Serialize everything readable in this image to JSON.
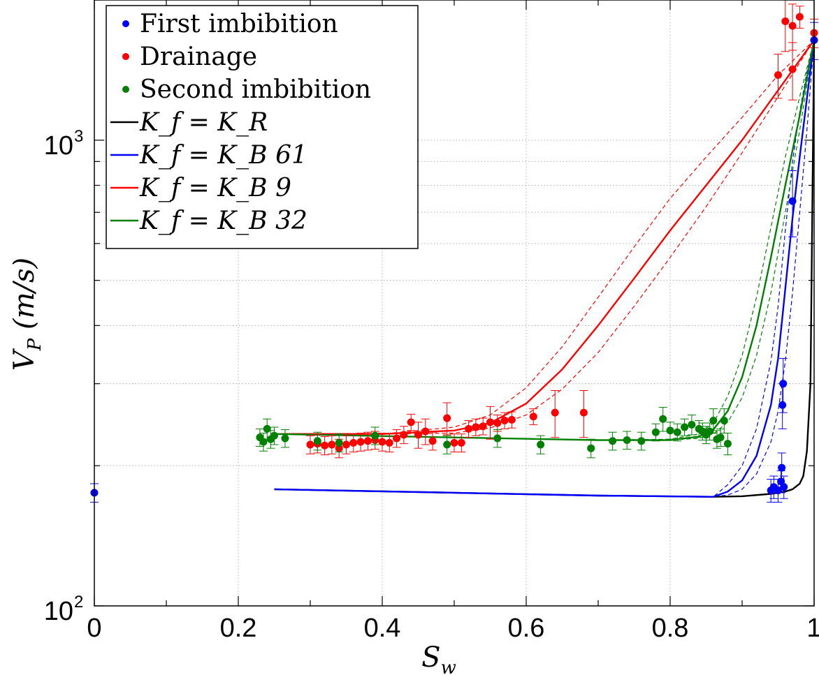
{
  "chart_data": {
    "type": "scatter",
    "xlabel": "S_w",
    "ylabel": "V_P (m/s)",
    "xlim": [
      0,
      1
    ],
    "ylim": [
      100,
      2000
    ],
    "yscale": "log",
    "grid": true,
    "legend_position": "top-left",
    "x_ticks": [
      "0",
      "0.2",
      "0.4",
      "0.6",
      "0.8",
      "1"
    ],
    "y_ticks": [
      "10^2",
      "10^3"
    ],
    "series": [
      {
        "name": "First imbibition",
        "kind": "points",
        "color": "#0000ff",
        "x": [
          0.0,
          0.94,
          0.944,
          0.95,
          0.954,
          0.955,
          0.956,
          0.957,
          0.958,
          0.97,
          1.0
        ],
        "y": [
          175,
          177,
          180,
          177,
          185,
          198,
          270,
          300,
          180,
          740,
          1640
        ],
        "err": [
          8,
          10,
          10,
          10,
          10,
          15,
          30,
          40,
          10,
          120,
          150
        ]
      },
      {
        "name": "Drainage",
        "kind": "points",
        "color": "#ff0000",
        "x": [
          0.3,
          0.31,
          0.32,
          0.33,
          0.34,
          0.35,
          0.36,
          0.37,
          0.38,
          0.39,
          0.4,
          0.41,
          0.42,
          0.43,
          0.44,
          0.45,
          0.46,
          0.47,
          0.49,
          0.5,
          0.51,
          0.52,
          0.53,
          0.54,
          0.55,
          0.56,
          0.57,
          0.58,
          0.61,
          0.64,
          0.68,
          0.95,
          0.96,
          0.97,
          0.97,
          0.98,
          1.0
        ],
        "y": [
          222,
          223,
          221,
          222,
          218,
          222,
          224,
          225,
          226,
          227,
          225,
          224,
          229,
          233,
          248,
          233,
          237,
          226,
          253,
          224,
          224,
          240,
          242,
          243,
          248,
          247,
          250,
          251,
          255,
          260,
          260,
          1380,
          1800,
          1760,
          1420,
          1840,
          1700
        ],
        "err": [
          10,
          10,
          10,
          10,
          10,
          10,
          10,
          10,
          10,
          10,
          10,
          10,
          10,
          10,
          10,
          15,
          15,
          10,
          20,
          10,
          10,
          10,
          10,
          10,
          20,
          10,
          10,
          10,
          10,
          30,
          30,
          150,
          250,
          200,
          200,
          100,
          120
        ]
      },
      {
        "name": "Second imbibition",
        "kind": "points",
        "color": "#008000",
        "x": [
          0.23,
          0.235,
          0.24,
          0.245,
          0.25,
          0.265,
          0.31,
          0.34,
          0.39,
          0.49,
          0.56,
          0.62,
          0.69,
          0.72,
          0.74,
          0.76,
          0.78,
          0.79,
          0.8,
          0.81,
          0.82,
          0.83,
          0.84,
          0.845,
          0.85,
          0.855,
          0.86,
          0.865,
          0.87,
          0.875,
          0.88
        ],
        "y": [
          230,
          225,
          240,
          228,
          232,
          229,
          226,
          224,
          232,
          222,
          229,
          222,
          218,
          226,
          227,
          226,
          236,
          252,
          238,
          236,
          242,
          245,
          240,
          237,
          233,
          237,
          250,
          228,
          230,
          250,
          223
        ],
        "err": [
          10,
          10,
          12,
          10,
          10,
          10,
          10,
          10,
          10,
          10,
          10,
          10,
          10,
          10,
          10,
          10,
          10,
          15,
          10,
          10,
          10,
          12,
          10,
          10,
          10,
          10,
          15,
          10,
          10,
          15,
          12
        ]
      },
      {
        "name": "K_f = K_R",
        "kind": "line",
        "color": "#000000",
        "x": [
          0.25,
          0.5,
          0.7,
          0.86,
          0.9,
          0.94,
          0.96,
          0.97,
          0.98,
          0.985,
          0.99,
          0.995,
          1.0
        ],
        "y": [
          178,
          175,
          172.5,
          171.5,
          172,
          174,
          176,
          178,
          183,
          190,
          215,
          300,
          1640
        ]
      },
      {
        "name": "K_f = K_B 61",
        "kind": "line",
        "color": "#0000ff",
        "x": [
          0.25,
          0.5,
          0.7,
          0.86,
          0.88,
          0.9,
          0.92,
          0.94,
          0.95,
          0.96,
          0.97,
          0.98,
          0.99,
          1.0
        ],
        "y": [
          178,
          175,
          172.5,
          171.5,
          176,
          186,
          210,
          270,
          340,
          480,
          680,
          920,
          1230,
          1640
        ],
        "band_lower": [
          178,
          175,
          172.5,
          171.5,
          173,
          178,
          192,
          225,
          262,
          335,
          470,
          700,
          1050,
          1640
        ],
        "band_upper": [
          178,
          175,
          172.5,
          171.5,
          182,
          200,
          240,
          335,
          440,
          640,
          900,
          1150,
          1400,
          1640
        ]
      },
      {
        "name": "K_f = K_B 9",
        "kind": "line",
        "color": "#ff0000",
        "x": [
          0.25,
          0.4,
          0.5,
          0.55,
          0.6,
          0.65,
          0.7,
          0.75,
          0.8,
          0.85,
          0.9,
          0.95,
          1.0
        ],
        "y": [
          234,
          234,
          238,
          247,
          272,
          322,
          400,
          505,
          640,
          800,
          1000,
          1280,
          1640
        ],
        "band_lower": [
          234,
          234,
          235,
          241,
          257,
          292,
          350,
          440,
          560,
          720,
          940,
          1240,
          1640
        ],
        "band_upper": [
          234,
          234,
          242,
          257,
          294,
          360,
          460,
          590,
          750,
          920,
          1120,
          1380,
          1640
        ]
      },
      {
        "name": "K_f = K_B 32",
        "kind": "line",
        "color": "#008000",
        "x": [
          0.25,
          0.5,
          0.7,
          0.8,
          0.84,
          0.86,
          0.88,
          0.9,
          0.92,
          0.94,
          0.96,
          0.98,
          1.0
        ],
        "y": [
          234,
          230,
          227,
          227,
          231,
          239,
          262,
          310,
          400,
          560,
          800,
          1130,
          1640
        ],
        "band_lower": [
          234,
          230,
          227,
          227,
          229,
          234,
          248,
          280,
          345,
          470,
          700,
          1050,
          1640
        ],
        "band_upper": [
          234,
          230,
          227,
          228,
          234,
          247,
          282,
          345,
          460,
          650,
          920,
          1240,
          1640
        ]
      }
    ]
  }
}
